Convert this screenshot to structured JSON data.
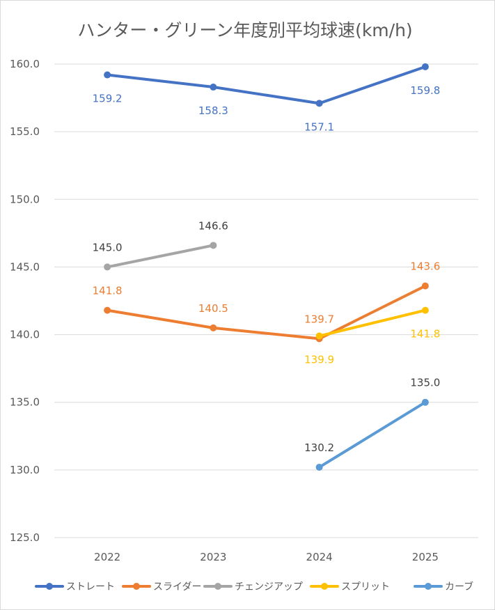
{
  "chart_data": {
    "type": "line",
    "title": "ハンター・グリーン年度別平均球速(km/h)",
    "categories": [
      "2022",
      "2023",
      "2024",
      "2025"
    ],
    "ylim": [
      125,
      160
    ],
    "ytick_step": 5,
    "ytick_labels": [
      "125.0",
      "130.0",
      "135.0",
      "140.0",
      "145.0",
      "150.0",
      "155.0",
      "160.0"
    ],
    "grid": true,
    "legend_position": "bottom",
    "series": [
      {
        "name": "ストレート",
        "color": "#4472C4",
        "values": [
          159.2,
          158.3,
          157.1,
          159.8
        ],
        "labels": [
          "159.2",
          "158.3",
          "157.1",
          "159.8"
        ],
        "label_color": "#4472C4",
        "label_pos": [
          "below",
          "below",
          "below",
          "below"
        ]
      },
      {
        "name": "スライダー",
        "color": "#ED7D31",
        "values": [
          141.8,
          140.5,
          139.7,
          143.6
        ],
        "labels": [
          "141.8",
          "140.5",
          "139.7",
          "143.6"
        ],
        "label_color": "#ED7D31",
        "label_pos": [
          "above",
          "above",
          "above",
          "above"
        ]
      },
      {
        "name": "チェンジアップ",
        "color": "#A5A5A5",
        "values": [
          145.0,
          146.6,
          null,
          null
        ],
        "labels": [
          "145.0",
          "146.6",
          null,
          null
        ],
        "label_color": "#404040",
        "label_pos": [
          "above",
          "above",
          "above",
          "above"
        ]
      },
      {
        "name": "スプリット",
        "color": "#FFC000",
        "values": [
          null,
          null,
          139.9,
          141.8
        ],
        "labels": [
          null,
          null,
          "139.9",
          "141.8"
        ],
        "label_color": "#FFC000",
        "label_pos": [
          "below",
          "below",
          "below",
          "below"
        ]
      },
      {
        "name": "カーブ",
        "color": "#5B9BD5",
        "values": [
          null,
          null,
          130.2,
          135.0
        ],
        "labels": [
          null,
          null,
          "130.2",
          "135.0"
        ],
        "label_color": "#404040",
        "label_pos": [
          "above",
          "above",
          "above",
          "above"
        ]
      }
    ]
  }
}
